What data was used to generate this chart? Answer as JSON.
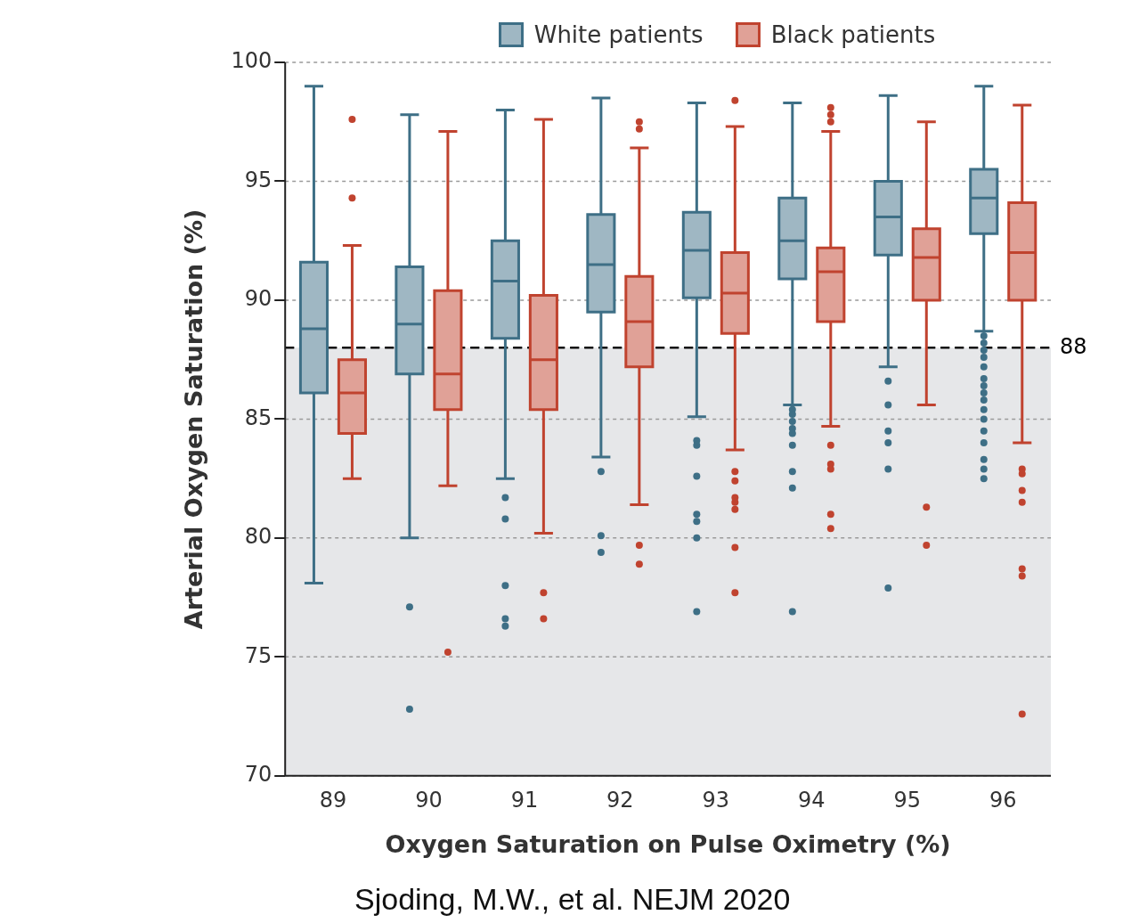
{
  "chart_data": {
    "type": "box",
    "xlabel": "Oxygen Saturation on Pulse Oximetry (%)",
    "ylabel": "Arterial Oxygen Saturation (%)",
    "categories": [
      "89",
      "90",
      "91",
      "92",
      "93",
      "94",
      "95",
      "96"
    ],
    "ylim": [
      70,
      100
    ],
    "yticks": [
      70,
      75,
      80,
      85,
      90,
      95,
      100
    ],
    "grid": "y",
    "legend": "top",
    "marker": "circle",
    "series": [
      {
        "name": "White patients",
        "color": "#3e6f86",
        "boxes": [
          {
            "low": 78.1,
            "q1": 86.1,
            "median": 88.8,
            "q3": 91.6,
            "high": 99.0
          },
          {
            "low": 80.0,
            "q1": 86.9,
            "median": 89.0,
            "q3": 91.4,
            "high": 97.8,
            "outliers": [
              77.1,
              72.8
            ]
          },
          {
            "low": 82.5,
            "q1": 88.4,
            "median": 90.8,
            "q3": 92.5,
            "high": 98.0,
            "outliers": [
              81.7,
              80.8,
              78.0,
              76.6,
              76.3
            ]
          },
          {
            "low": 83.4,
            "q1": 89.5,
            "median": 91.5,
            "q3": 93.6,
            "high": 98.5,
            "outliers": [
              82.8,
              80.1,
              79.4
            ]
          },
          {
            "low": 85.1,
            "q1": 90.1,
            "median": 92.1,
            "q3": 93.7,
            "high": 98.3,
            "outliers": [
              84.1,
              83.9,
              82.6,
              81.0,
              80.7,
              80.0,
              76.9
            ]
          },
          {
            "low": 85.6,
            "q1": 90.9,
            "median": 92.5,
            "q3": 94.3,
            "high": 98.3,
            "outliers": [
              85.4,
              85.2,
              84.9,
              84.6,
              84.4,
              83.9,
              82.8,
              82.1,
              76.9
            ]
          },
          {
            "low": 87.2,
            "q1": 91.9,
            "median": 93.5,
            "q3": 95.0,
            "high": 98.6,
            "outliers": [
              86.6,
              85.6,
              84.5,
              84.0,
              82.9,
              77.9
            ]
          },
          {
            "low": 88.7,
            "q1": 92.8,
            "median": 94.3,
            "q3": 95.5,
            "high": 99.0,
            "outliers": [
              88.5,
              88.2,
              87.9,
              87.6,
              87.2,
              86.7,
              86.4,
              86.1,
              85.8,
              85.4,
              85.0,
              84.5,
              84.0,
              83.3,
              82.9,
              82.5
            ]
          }
        ]
      },
      {
        "name": "Black patients",
        "color": "#c0432f",
        "boxes": [
          {
            "low": 82.5,
            "q1": 84.4,
            "median": 86.1,
            "q3": 87.5,
            "high": 92.3,
            "outliers": [
              97.6,
              94.3
            ]
          },
          {
            "low": 82.2,
            "q1": 85.4,
            "median": 86.9,
            "q3": 90.4,
            "high": 97.1,
            "outliers": [
              75.2
            ]
          },
          {
            "low": 80.2,
            "q1": 85.4,
            "median": 87.5,
            "q3": 90.2,
            "high": 97.6,
            "outliers": [
              77.7,
              76.6
            ]
          },
          {
            "low": 81.4,
            "q1": 87.2,
            "median": 89.1,
            "q3": 91.0,
            "high": 96.4,
            "outliers": [
              97.5,
              97.2,
              79.7,
              78.9
            ]
          },
          {
            "low": 83.7,
            "q1": 88.6,
            "median": 90.3,
            "q3": 92.0,
            "high": 97.3,
            "outliers": [
              98.4,
              82.8,
              82.4,
              81.7,
              81.5,
              81.2,
              79.6,
              77.7
            ]
          },
          {
            "low": 84.7,
            "q1": 89.1,
            "median": 91.2,
            "q3": 92.2,
            "high": 97.1,
            "outliers": [
              98.1,
              97.8,
              97.5,
              83.9,
              83.1,
              82.9,
              81.0,
              80.4
            ]
          },
          {
            "low": 85.6,
            "q1": 90.0,
            "median": 91.8,
            "q3": 93.0,
            "high": 97.5,
            "outliers": [
              81.3,
              79.7
            ]
          },
          {
            "low": 84.0,
            "q1": 90.0,
            "median": 92.0,
            "q3": 94.1,
            "high": 98.2,
            "outliers": [
              82.9,
              82.7,
              82.0,
              81.5,
              78.7,
              78.4,
              72.6
            ]
          }
        ]
      }
    ],
    "ref_lines": [
      {
        "axis": "y",
        "value": 88,
        "label": "88",
        "color": "#000000",
        "line_style": "dashed"
      }
    ],
    "bands": [
      {
        "axis": "y",
        "from": 70,
        "to": 88,
        "color": "#e6e7e9"
      }
    ],
    "annotations": [
      "Sjoding, M.W., et al. NEJM 2020"
    ]
  }
}
